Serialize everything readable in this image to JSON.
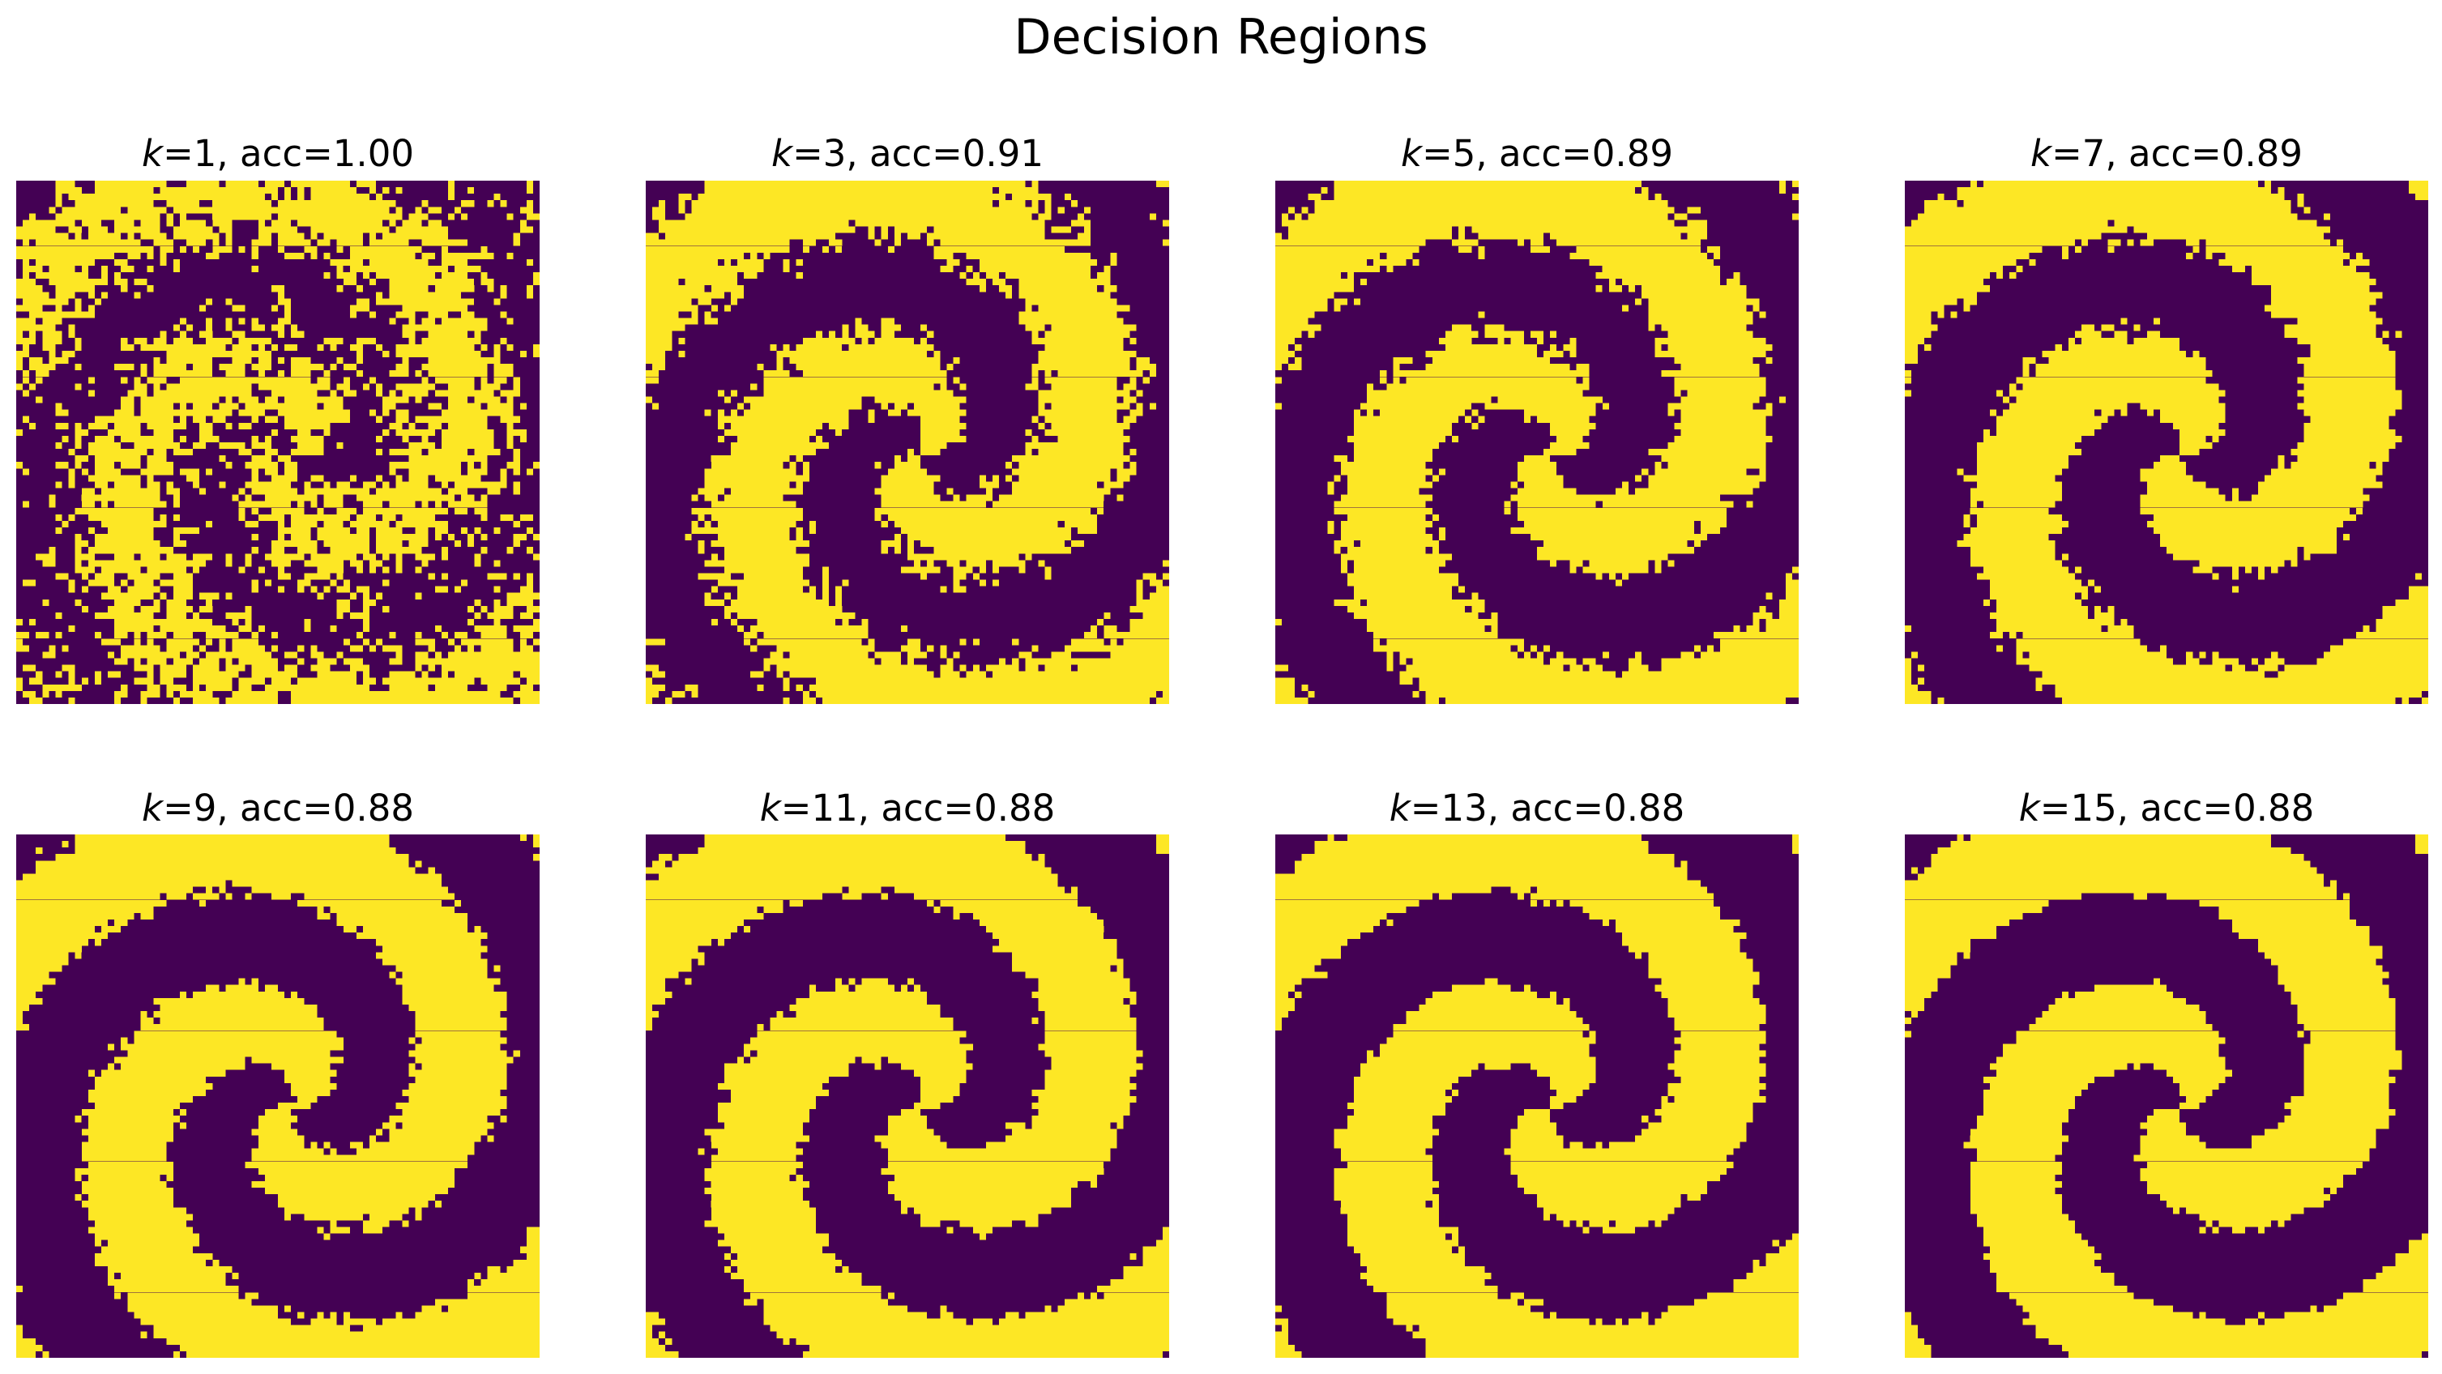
{
  "title": "Decision Regions",
  "colors": {
    "class_0": "#440154",
    "class_1": "#fde725",
    "background": "#ffffff"
  },
  "chart_data": [
    {
      "type": "heatmap",
      "k": "1",
      "acc": "1.00",
      "k_label": "k",
      "rest_label": "=1, acc=1.00",
      "classes": [
        0,
        1
      ],
      "grid": false,
      "axes": "off",
      "regions": "two interleaved spiral arms, highly fragmented boundary"
    },
    {
      "type": "heatmap",
      "k": "3",
      "acc": "0.91",
      "k_label": "k",
      "rest_label": "=3, acc=0.91",
      "classes": [
        0,
        1
      ],
      "grid": false,
      "axes": "off",
      "regions": "two interleaved spiral arms, noisy boundary"
    },
    {
      "type": "heatmap",
      "k": "5",
      "acc": "0.89",
      "k_label": "k",
      "rest_label": "=5, acc=0.89",
      "classes": [
        0,
        1
      ],
      "grid": false,
      "axes": "off",
      "regions": "two interleaved spiral arms"
    },
    {
      "type": "heatmap",
      "k": "7",
      "acc": "0.89",
      "k_label": "k",
      "rest_label": "=7, acc=0.89",
      "classes": [
        0,
        1
      ],
      "grid": false,
      "axes": "off",
      "regions": "two interleaved spiral arms"
    },
    {
      "type": "heatmap",
      "k": "9",
      "acc": "0.88",
      "k_label": "k",
      "rest_label": "=9, acc=0.88",
      "classes": [
        0,
        1
      ],
      "grid": false,
      "axes": "off",
      "regions": "two interleaved spiral arms, smoother boundary"
    },
    {
      "type": "heatmap",
      "k": "11",
      "acc": "0.88",
      "k_label": "k",
      "rest_label": "=11, acc=0.88",
      "classes": [
        0,
        1
      ],
      "grid": false,
      "axes": "off",
      "regions": "two interleaved spiral arms, smoother boundary"
    },
    {
      "type": "heatmap",
      "k": "13",
      "acc": "0.88",
      "k_label": "k",
      "rest_label": "=13, acc=0.88",
      "classes": [
        0,
        1
      ],
      "grid": false,
      "axes": "off",
      "regions": "two interleaved spiral arms, smooth boundary"
    },
    {
      "type": "heatmap",
      "k": "15",
      "acc": "0.88",
      "k_label": "k",
      "rest_label": "=15, acc=0.88",
      "classes": [
        0,
        1
      ],
      "grid": false,
      "axes": "off",
      "regions": "two interleaved spiral arms, smooth boundary"
    }
  ]
}
